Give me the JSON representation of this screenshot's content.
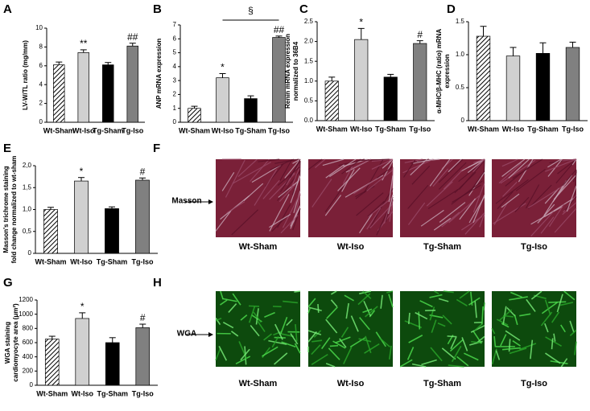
{
  "chart_data": [
    {
      "type": "bar",
      "panel": "A",
      "ylabel": [
        "LV-W/TL ratio (mg/mm)"
      ],
      "categories": [
        "Wt-Sham",
        "Wt-Iso",
        "Tg-Sham",
        "Tg-Iso"
      ],
      "values": [
        6.1,
        7.4,
        6.1,
        8.1
      ],
      "errors": [
        0.3,
        0.3,
        0.25,
        0.3
      ],
      "significance": [
        null,
        "**",
        null,
        "##"
      ],
      "colors": [
        "#ffffff",
        "#d0d0d0",
        "#000000",
        "#808080"
      ],
      "hatched": [
        true,
        false,
        false,
        false
      ],
      "ylim": [
        0,
        10
      ],
      "yticks": [
        0,
        2,
        4,
        6,
        8,
        10
      ]
    },
    {
      "type": "bar",
      "panel": "B",
      "ylabel": [
        "ANP mRNA expression"
      ],
      "categories": [
        "Wt-Sham",
        "Wt-Iso",
        "Tg-Sham",
        "Tg-Iso"
      ],
      "values": [
        1.0,
        3.2,
        1.7,
        6.1
      ],
      "errors": [
        0.15,
        0.3,
        0.2,
        0.1
      ],
      "significance": [
        null,
        "*",
        null,
        "##"
      ],
      "bracket_label": "§",
      "colors": [
        "#ffffff",
        "#d0d0d0",
        "#000000",
        "#808080"
      ],
      "hatched": [
        true,
        false,
        false,
        false
      ],
      "ylim": [
        0,
        7
      ],
      "yticks": [
        0,
        1,
        2,
        3,
        4,
        5,
        6,
        7
      ]
    },
    {
      "type": "bar",
      "panel": "C",
      "ylabel": [
        "Renin mRNA expression",
        "normalized to 36B4"
      ],
      "categories": [
        "Wt-Sham",
        "Wt-Iso",
        "Tg-Sham",
        "Tg-Iso"
      ],
      "values": [
        1.0,
        2.05,
        1.1,
        1.95
      ],
      "errors": [
        0.1,
        0.28,
        0.07,
        0.07
      ],
      "significance": [
        null,
        "*",
        null,
        "#"
      ],
      "colors": [
        "#ffffff",
        "#d0d0d0",
        "#000000",
        "#808080"
      ],
      "hatched": [
        true,
        false,
        false,
        false
      ],
      "ylim": [
        0,
        2.5
      ],
      "yticks": [
        {
          "value": 0,
          "label": "0.0"
        },
        0.5,
        {
          "value": 1,
          "label": "1.0"
        },
        1.5,
        {
          "value": 2,
          "label": "2.0"
        },
        2.5
      ]
    },
    {
      "type": "bar",
      "panel": "D",
      "ylabel": [
        "α-MHC/β-MHC (ratio) mRNA",
        "expression"
      ],
      "categories": [
        "Wt-Sham",
        "Wt-Iso",
        "Tg-Sham",
        "Tg-Iso"
      ],
      "values": [
        1.28,
        0.98,
        1.02,
        1.11
      ],
      "errors": [
        0.15,
        0.13,
        0.16,
        0.08
      ],
      "colors": [
        "#ffffff",
        "#d0d0d0",
        "#000000",
        "#808080"
      ],
      "hatched": [
        true,
        false,
        false,
        false
      ],
      "ylim": [
        0,
        1.5
      ],
      "yticks": [
        0,
        0.5,
        {
          "value": 1,
          "label": "1.0"
        },
        1.5
      ]
    },
    {
      "type": "bar",
      "panel": "E",
      "ylabel": [
        "Masson's trichrome staining",
        "fold change normalized to wt-sham"
      ],
      "categories": [
        "Wt-Sham",
        "Wt-Iso",
        "Tg-Sham",
        "Tg-Iso"
      ],
      "values": [
        1.0,
        1.65,
        1.02,
        1.67
      ],
      "errors": [
        0.05,
        0.08,
        0.04,
        0.05
      ],
      "significance": [
        null,
        "*",
        null,
        "#"
      ],
      "colors": [
        "#ffffff",
        "#d0d0d0",
        "#000000",
        "#808080"
      ],
      "hatched": [
        true,
        false,
        false,
        false
      ],
      "ylim": [
        0,
        2
      ],
      "yticks": [
        0,
        {
          "value": 0.5,
          "label": "0,5"
        },
        {
          "value": 1,
          "label": "1,0"
        },
        {
          "value": 1.5,
          "label": "1,5"
        },
        {
          "value": 2,
          "label": "2,0"
        }
      ]
    },
    {
      "type": "bar",
      "panel": "G",
      "ylabel": [
        "WGA staining",
        "cardiomyocyte area (μm²)"
      ],
      "categories": [
        "Wt-Sham",
        "Wt-Iso",
        "Tg-Sham",
        "Tg-Iso"
      ],
      "values": [
        650,
        940,
        600,
        810
      ],
      "errors": [
        40,
        80,
        70,
        50
      ],
      "significance": [
        null,
        "*",
        null,
        "#"
      ],
      "colors": [
        "#ffffff",
        "#d0d0d0",
        "#000000",
        "#808080"
      ],
      "hatched": [
        true,
        false,
        false,
        false
      ],
      "ylim": [
        0,
        1200
      ],
      "yticks": [
        0,
        200,
        400,
        600,
        800,
        1000,
        1200
      ]
    }
  ],
  "image_panels": [
    {
      "panel": "F",
      "row_label": "Masson",
      "images": [
        "Wt-Sham",
        "Wt-Iso",
        "Tg-Sham",
        "Tg-Iso"
      ]
    },
    {
      "panel": "H",
      "row_label": "WGA",
      "images": [
        "Wt-Sham",
        "Wt-Iso",
        "Tg-Sham",
        "Tg-Iso"
      ]
    }
  ]
}
